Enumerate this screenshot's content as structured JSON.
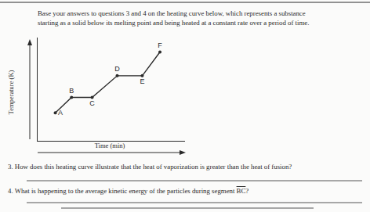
{
  "instructions": [
    "Base your answers to questions 3 and 4 on the heating curve below, which represents a substance",
    "starting as a solid below its melting point and being heated at a constant rate over a period of time."
  ],
  "chart_data": {
    "type": "line",
    "x_label": "Time (min)",
    "y_label": "Temperature (K)",
    "x": [
      1.2,
      2.3,
      3.7,
      5.4,
      7.1,
      8.3
    ],
    "values": [
      2.7,
      4.2,
      4.2,
      6.3,
      6.3,
      8.6
    ],
    "point_labels": [
      "A",
      "B",
      "C",
      "D",
      "E",
      "F"
    ],
    "xlim": [
      0,
      10
    ],
    "ylim": [
      0,
      10
    ],
    "tick_labels": false,
    "grid": false,
    "color": "#2a2a2a",
    "marker": "circle"
  },
  "questions": [
    {
      "text": "3. How does this heating curve illustrate that the heat of vaporization is greater than the heat of fusion?"
    },
    {
      "text": "4. What is happening to the average kinetic energy of the particles during segment",
      "segment": "BC",
      "end": "?"
    }
  ]
}
